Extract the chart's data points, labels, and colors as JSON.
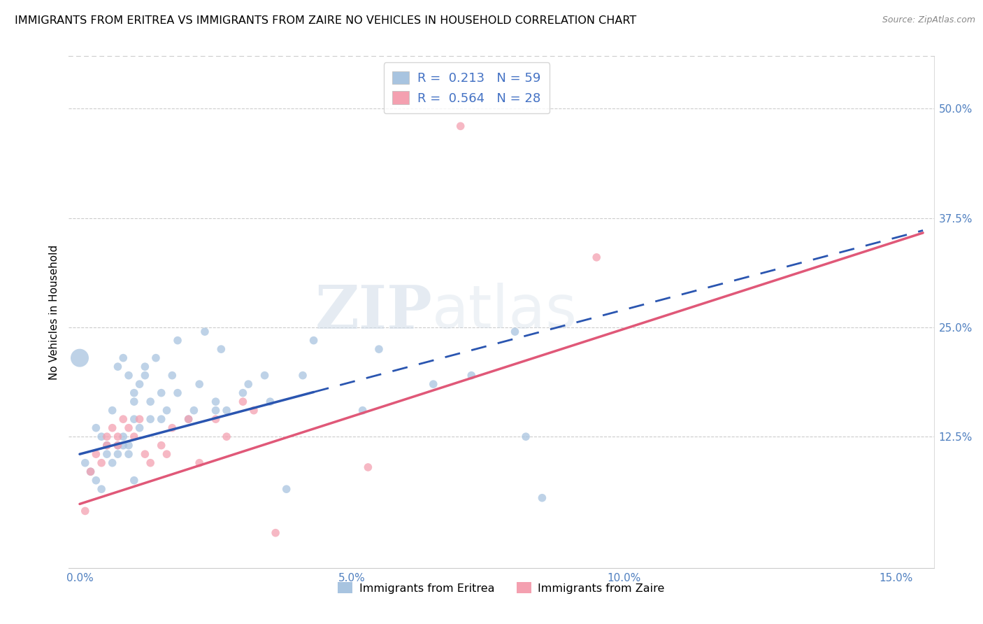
{
  "title": "IMMIGRANTS FROM ERITREA VS IMMIGRANTS FROM ZAIRE NO VEHICLES IN HOUSEHOLD CORRELATION CHART",
  "source": "Source: ZipAtlas.com",
  "ylabel": "No Vehicles in Household",
  "legend_label1": "Immigrants from Eritrea",
  "legend_label2": "Immigrants from Zaire",
  "R1": 0.213,
  "N1": 59,
  "R2": 0.564,
  "N2": 28,
  "xlim_min": -0.002,
  "xlim_max": 0.157,
  "ylim_min": -0.025,
  "ylim_max": 0.56,
  "xtick_vals": [
    0.0,
    0.05,
    0.1,
    0.15
  ],
  "xticklabels": [
    "0.0%",
    "5.0%",
    "10.0%",
    "15.0%"
  ],
  "ytick_vals": [
    0.125,
    0.25,
    0.375,
    0.5
  ],
  "yticklabels": [
    "12.5%",
    "25.0%",
    "37.5%",
    "50.0%"
  ],
  "color_eritrea": "#a8c4e0",
  "color_zaire": "#f4a0b0",
  "line_eritrea": "#2a55b0",
  "line_zaire": "#e05878",
  "watermark_zip": "ZIP",
  "watermark_atlas": "atlas",
  "eritrea_x": [
    0.0,
    0.001,
    0.002,
    0.003,
    0.003,
    0.004,
    0.004,
    0.005,
    0.005,
    0.006,
    0.006,
    0.007,
    0.007,
    0.007,
    0.008,
    0.008,
    0.008,
    0.009,
    0.009,
    0.009,
    0.01,
    0.01,
    0.01,
    0.01,
    0.011,
    0.011,
    0.012,
    0.012,
    0.013,
    0.013,
    0.014,
    0.015,
    0.015,
    0.016,
    0.017,
    0.018,
    0.018,
    0.02,
    0.021,
    0.022,
    0.023,
    0.025,
    0.025,
    0.026,
    0.027,
    0.03,
    0.031,
    0.034,
    0.035,
    0.038,
    0.041,
    0.043,
    0.052,
    0.055,
    0.065,
    0.072,
    0.08,
    0.082,
    0.085
  ],
  "eritrea_y": [
    0.215,
    0.095,
    0.085,
    0.075,
    0.135,
    0.125,
    0.065,
    0.115,
    0.105,
    0.095,
    0.155,
    0.115,
    0.105,
    0.205,
    0.125,
    0.115,
    0.215,
    0.195,
    0.115,
    0.105,
    0.175,
    0.165,
    0.145,
    0.075,
    0.135,
    0.185,
    0.205,
    0.195,
    0.165,
    0.145,
    0.215,
    0.175,
    0.145,
    0.155,
    0.195,
    0.175,
    0.235,
    0.145,
    0.155,
    0.185,
    0.245,
    0.165,
    0.155,
    0.225,
    0.155,
    0.175,
    0.185,
    0.195,
    0.165,
    0.065,
    0.195,
    0.235,
    0.155,
    0.225,
    0.185,
    0.195,
    0.245,
    0.125,
    0.055
  ],
  "eritrea_sizes": [
    350,
    70,
    70,
    70,
    70,
    70,
    70,
    70,
    70,
    70,
    70,
    70,
    70,
    70,
    70,
    70,
    70,
    70,
    70,
    70,
    70,
    70,
    70,
    70,
    70,
    70,
    70,
    70,
    70,
    70,
    70,
    70,
    70,
    70,
    70,
    70,
    70,
    70,
    70,
    70,
    70,
    70,
    70,
    70,
    70,
    70,
    70,
    70,
    70,
    70,
    70,
    70,
    70,
    70,
    70,
    70,
    70,
    70,
    70
  ],
  "zaire_x": [
    0.001,
    0.002,
    0.003,
    0.004,
    0.005,
    0.005,
    0.006,
    0.007,
    0.007,
    0.008,
    0.009,
    0.01,
    0.011,
    0.012,
    0.013,
    0.015,
    0.016,
    0.017,
    0.02,
    0.022,
    0.025,
    0.027,
    0.03,
    0.032,
    0.036,
    0.053,
    0.07,
    0.095
  ],
  "zaire_y": [
    0.04,
    0.085,
    0.105,
    0.095,
    0.125,
    0.115,
    0.135,
    0.115,
    0.125,
    0.145,
    0.135,
    0.125,
    0.145,
    0.105,
    0.095,
    0.115,
    0.105,
    0.135,
    0.145,
    0.095,
    0.145,
    0.125,
    0.165,
    0.155,
    0.015,
    0.09,
    0.48,
    0.33
  ],
  "zaire_sizes": [
    70,
    70,
    70,
    70,
    70,
    70,
    70,
    70,
    70,
    70,
    70,
    70,
    70,
    70,
    70,
    70,
    70,
    70,
    70,
    70,
    70,
    70,
    70,
    70,
    70,
    70,
    70,
    70
  ],
  "eritrea_line_x_solid_end": 0.043,
  "eritrea_line_intercept": 0.105,
  "eritrea_line_slope": 1.65,
  "zaire_line_intercept": 0.048,
  "zaire_line_slope": 2.0
}
